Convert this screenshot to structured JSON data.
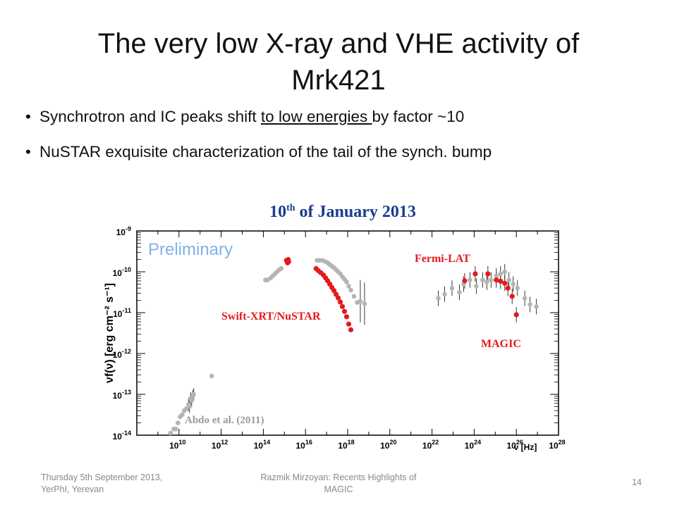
{
  "slide": {
    "title_line1": "The very low X-ray and VHE activity of",
    "title_line2": "Mrk421",
    "bullets": [
      {
        "pre": "Synchrotron and IC peaks shift ",
        "underlined": "to low energies ",
        "post": "by factor ~10"
      },
      {
        "pre": "NuSTAR exquisite characterization of the tail of the synch. bump",
        "underlined": "",
        "post": ""
      }
    ]
  },
  "footer": {
    "left_line1": "Thursday 5th September 2013,",
    "left_line2": "YerPhI, Yerevan",
    "center_line1": "Razmik Mirzoyan: Recents Highlights of",
    "center_line2": "MAGIC",
    "page": "14"
  },
  "chart_data": {
    "type": "scatter",
    "title": "10th of January 2013",
    "title_main": "10",
    "title_sup": "th",
    "title_rest": " of January 2013",
    "watermark": "Preliminary",
    "ylabel": "νf(ν) [erg cm⁻² s⁻¹]",
    "xlabel": "ν [Hz]",
    "x_scale": "log",
    "y_scale": "log",
    "xlim_log10": [
      8,
      28
    ],
    "ylim_log10": [
      -14,
      -9
    ],
    "x_ticks": [
      {
        "base": "10",
        "exp": "10",
        "value": 10
      },
      {
        "base": "10",
        "exp": "12",
        "value": 12
      },
      {
        "base": "10",
        "exp": "14",
        "value": 14
      },
      {
        "base": "10",
        "exp": "16",
        "value": 16
      },
      {
        "base": "10",
        "exp": "18",
        "value": 18
      },
      {
        "base": "10",
        "exp": "20",
        "value": 20
      },
      {
        "base": "10",
        "exp": "22",
        "value": 22
      },
      {
        "base": "10",
        "exp": "24",
        "value": 24
      },
      {
        "base": "10",
        "exp": "26",
        "value": 26
      },
      {
        "base": "10",
        "exp": "28",
        "value": 28
      }
    ],
    "y_ticks": [
      {
        "base": "10",
        "exp": "-9",
        "value": -9
      },
      {
        "base": "10",
        "exp": "-10",
        "value": -10
      },
      {
        "base": "10",
        "exp": "-11",
        "value": -11
      },
      {
        "base": "10",
        "exp": "-12",
        "value": -12
      },
      {
        "base": "10",
        "exp": "-13",
        "value": -13
      },
      {
        "base": "10",
        "exp": "-14",
        "value": -14
      }
    ],
    "annotations": [
      {
        "text": "Fermi-LAT",
        "color": "#e41a1c"
      },
      {
        "text": "Swift-XRT/NuSTAR",
        "color": "#e41a1c"
      },
      {
        "text": "MAGIC",
        "color": "#e41a1c"
      },
      {
        "text": "Abdo et al. (2011)",
        "color": "#999999"
      }
    ],
    "colors": {
      "current": "#e41a1c",
      "archival": "#b4b4b4",
      "title": "#1a3d8f",
      "watermark": "#7fb3e6"
    },
    "series": [
      {
        "color": "#b4b4b4",
        "points": [
          [
            9.6,
            -13.95
          ],
          [
            9.75,
            -13.85
          ],
          [
            9.85,
            -13.85
          ],
          [
            9.95,
            -13.7
          ],
          [
            10.05,
            -13.55
          ],
          [
            10.15,
            -13.5
          ],
          [
            10.25,
            -13.4
          ],
          [
            10.35,
            -13.35
          ],
          [
            10.45,
            -13.25
          ],
          [
            10.5,
            -13.3
          ],
          [
            10.55,
            -13.1
          ],
          [
            10.6,
            -13.15
          ],
          [
            10.65,
            -13.05
          ],
          [
            10.7,
            -13.0
          ],
          [
            11.55,
            -12.55
          ],
          [
            14.1,
            -10.2
          ],
          [
            14.2,
            -10.2
          ],
          [
            14.35,
            -10.15
          ],
          [
            14.45,
            -10.1
          ],
          [
            14.55,
            -10.05
          ],
          [
            14.65,
            -10.0
          ],
          [
            14.75,
            -9.95
          ],
          [
            14.85,
            -9.92
          ],
          [
            16.55,
            -9.72
          ],
          [
            16.65,
            -9.72
          ],
          [
            16.8,
            -9.72
          ],
          [
            16.95,
            -9.75
          ],
          [
            17.05,
            -9.78
          ],
          [
            17.15,
            -9.82
          ],
          [
            17.25,
            -9.86
          ],
          [
            17.35,
            -9.9
          ],
          [
            17.45,
            -9.95
          ],
          [
            17.55,
            -10.0
          ],
          [
            17.65,
            -10.05
          ],
          [
            17.75,
            -10.12
          ],
          [
            17.85,
            -10.18
          ],
          [
            17.95,
            -10.25
          ],
          [
            18.05,
            -10.35
          ],
          [
            18.15,
            -10.45
          ],
          [
            18.3,
            -10.6
          ],
          [
            18.45,
            -10.75
          ],
          [
            18.6,
            -10.72
          ],
          [
            18.8,
            -10.78
          ],
          [
            22.3,
            -10.65
          ],
          [
            22.6,
            -10.55
          ],
          [
            22.95,
            -10.4
          ],
          [
            23.3,
            -10.5
          ],
          [
            23.5,
            -10.3
          ],
          [
            23.8,
            -10.2
          ],
          [
            24.1,
            -10.35
          ],
          [
            24.4,
            -10.2
          ],
          [
            24.6,
            -10.25
          ],
          [
            24.8,
            -10.2
          ],
          [
            25.05,
            -10.1
          ],
          [
            25.25,
            -10.05
          ],
          [
            25.45,
            -10.0
          ],
          [
            25.65,
            -10.2
          ],
          [
            25.85,
            -10.3
          ],
          [
            26.05,
            -10.4
          ],
          [
            26.4,
            -10.65
          ],
          [
            26.65,
            -10.8
          ],
          [
            26.95,
            -10.85
          ]
        ]
      },
      {
        "color": "#e41a1c",
        "points": [
          [
            15.1,
            -9.72
          ],
          [
            15.15,
            -9.78
          ],
          [
            15.2,
            -9.75
          ],
          [
            15.18,
            -9.7
          ],
          [
            16.5,
            -9.92
          ],
          [
            16.6,
            -9.97
          ],
          [
            16.72,
            -10.02
          ],
          [
            16.85,
            -10.08
          ],
          [
            16.95,
            -10.15
          ],
          [
            17.05,
            -10.22
          ],
          [
            17.15,
            -10.3
          ],
          [
            17.25,
            -10.38
          ],
          [
            17.35,
            -10.46
          ],
          [
            17.45,
            -10.55
          ],
          [
            17.55,
            -10.64
          ],
          [
            17.65,
            -10.74
          ],
          [
            17.75,
            -10.85
          ],
          [
            17.85,
            -10.97
          ],
          [
            17.95,
            -11.1
          ],
          [
            18.05,
            -11.28
          ],
          [
            18.15,
            -11.42
          ],
          [
            23.55,
            -10.22
          ],
          [
            24.05,
            -10.05
          ],
          [
            24.65,
            -10.05
          ],
          [
            25.05,
            -10.2
          ],
          [
            25.25,
            -10.23
          ],
          [
            25.45,
            -10.28
          ],
          [
            25.6,
            -10.4
          ],
          [
            25.8,
            -10.6
          ],
          [
            26.0,
            -11.05
          ]
        ]
      }
    ]
  }
}
